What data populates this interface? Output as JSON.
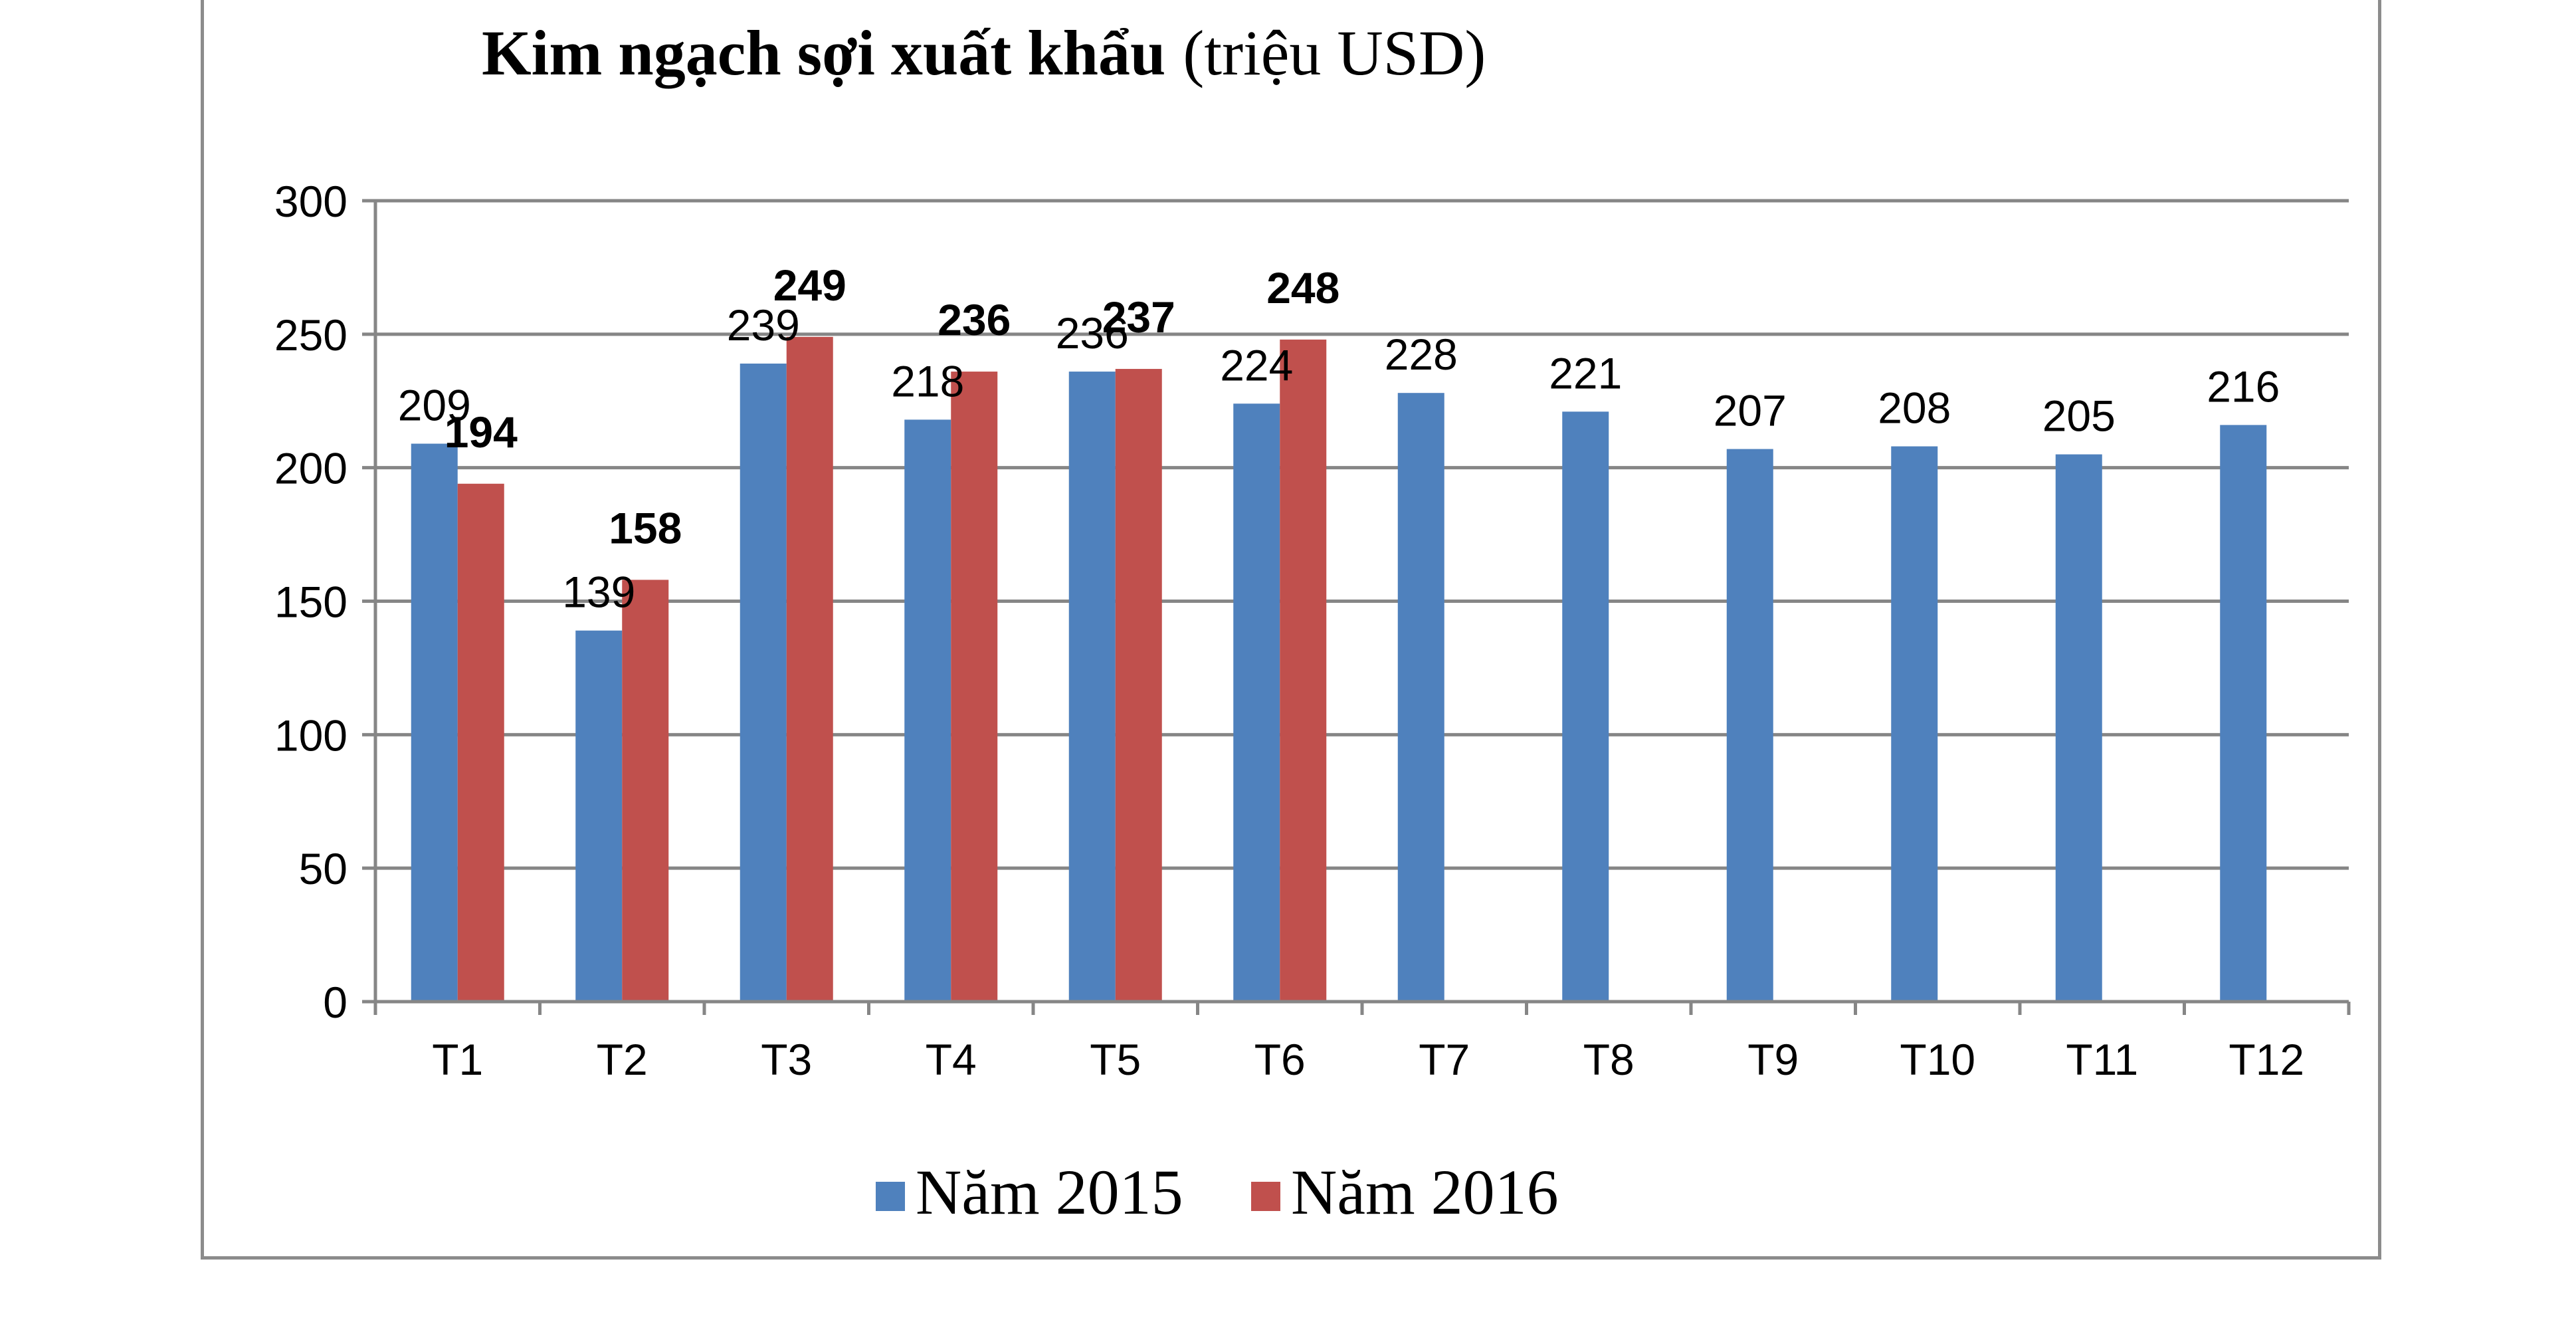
{
  "chart_data": {
    "type": "bar",
    "title_bold": "Kim ngạch sợi xuất khẩu",
    "title_normal": "(triệu USD)",
    "xlabel": "",
    "ylabel": "",
    "ylim": [
      0,
      300
    ],
    "yticks": [
      "0",
      "50",
      "100",
      "150",
      "200",
      "250",
      "300"
    ],
    "grid": true,
    "legend_position": "bottom",
    "categories": [
      "T1",
      "T2",
      "T3",
      "T4",
      "T5",
      "T6",
      "T7",
      "T8",
      "T9",
      "T10",
      "T11",
      "T12"
    ],
    "series": [
      {
        "name": "Năm 2015",
        "color": "#4f81bd",
        "label_bold": false,
        "values": [
          209,
          139,
          239,
          218,
          236,
          224,
          228,
          221,
          207,
          208,
          205,
          216
        ]
      },
      {
        "name": "Năm 2016",
        "color": "#c0504d",
        "label_bold": true,
        "values": [
          194,
          158,
          249,
          236,
          237,
          248,
          null,
          null,
          null,
          null,
          null,
          null
        ]
      }
    ]
  }
}
